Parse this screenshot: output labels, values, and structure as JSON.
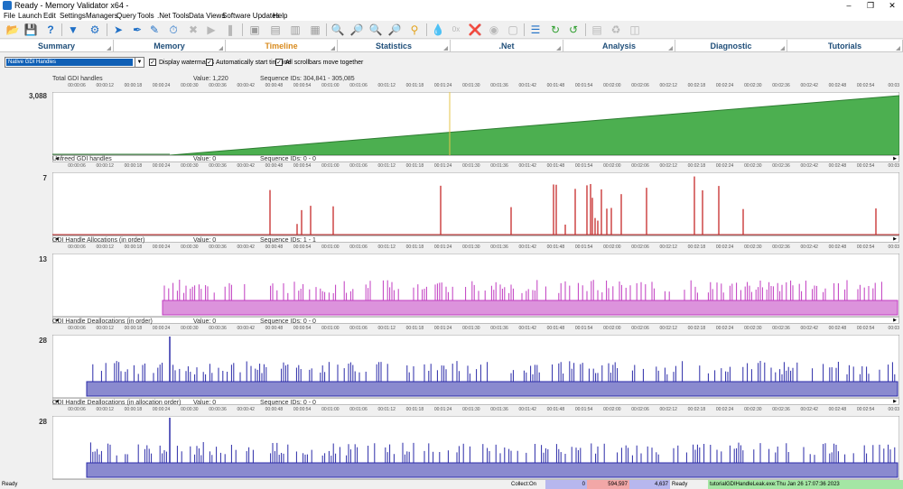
{
  "window": {
    "title": "Ready - Memory Validator x64 -"
  },
  "menu": [
    "File",
    "Launch",
    "Edit",
    "Settings",
    "Managers",
    "Query",
    "Tools",
    ".Net Tools",
    "Data Views",
    "Software Updates",
    "Help"
  ],
  "tabs": [
    {
      "label": "Summary"
    },
    {
      "label": "Memory"
    },
    {
      "label": "Timeline"
    },
    {
      "label": "Statistics"
    },
    {
      "label": ".Net"
    },
    {
      "label": "Analysis"
    },
    {
      "label": "Diagnostic"
    },
    {
      "label": "Tutorials"
    }
  ],
  "options": {
    "handle_type": "Native GDI Handles",
    "display_watermarks": "Display watermarks",
    "auto_start": "Automatically start timeline",
    "scrollbars_together": "All scrollbars move together"
  },
  "time_ticks": [
    "00:00:06",
    "00:00:12",
    "00:00:18",
    "00:00:24",
    "00:00:30",
    "00:00:36",
    "00:00:42",
    "00:00:48",
    "00:00:54",
    "00:01:00",
    "00:01:06",
    "00:01:12",
    "00:01:18",
    "00:01:24",
    "00:01:30",
    "00:01:36",
    "00:01:42",
    "00:01:48",
    "00:01:54",
    "00:02:00",
    "00:02:06",
    "00:02:12",
    "00:02:18",
    "00:02:24",
    "00:02:30",
    "00:02:36",
    "00:02:42",
    "00:02:48",
    "00:02:54",
    "00:03"
  ],
  "panels": [
    {
      "title": "Total GDI handles",
      "value": "Value: 1,220",
      "seq": "Sequence IDs: 304,841 - 305,085",
      "ymax": "3,088",
      "color": "#4caf50",
      "kind": "area"
    },
    {
      "title": "Unfreed GDI handles",
      "value": "Value: 0",
      "seq": "Sequence IDs: 0 - 0",
      "ymax": "7",
      "color": "#c62828",
      "kind": "spikes"
    },
    {
      "title": "GDI Handle Allocations (in order)",
      "value": "Value: 0",
      "seq": "Sequence IDs: 1 - 1",
      "ymax": "13",
      "color": "#c03bc0",
      "kind": "band"
    },
    {
      "title": "GDI Handle Deallocations (in order)",
      "value": "Value: 0",
      "seq": "Sequence IDs: 0 - 0",
      "ymax": "28",
      "color": "#2a2aa8",
      "kind": "band"
    },
    {
      "title": "GDI Handle Deallocations (in allocation order)",
      "value": "Value: 0",
      "seq": "Sequence IDs: 0 - 0",
      "ymax": "28",
      "color": "#2a2aa8",
      "kind": "band"
    }
  ],
  "status": {
    "left": "Ready",
    "collect": "Collect:On",
    "c1": "0",
    "c2": "594,597",
    "c3": "4,637",
    "ready": "Ready",
    "exe": "tutorialGDIHandleLeak.exe:Thu Jan 26 17:07:36 2023"
  },
  "toolbar_icons": [
    "open-icon",
    "save-icon",
    "help-icon",
    "filter-icon",
    "settings-icon",
    "launch-icon",
    "inject-icon",
    "wait-icon",
    "start-icon",
    "stop-icon",
    "pause-icon",
    "find-icon",
    "find-object-icon",
    "find-address-icon",
    "find-pattern-icon",
    "watch-icon",
    "clear-icon",
    "report-icon",
    "copy-icon",
    "export-icon",
    "net-icon",
    "hex-icon",
    "gc-icon",
    "leak-icon",
    "columns-icon",
    "refresh-icon",
    "refresh-all-icon",
    "snapshot-icon",
    "compare-icon",
    "recycle-icon",
    "camera-icon"
  ]
}
